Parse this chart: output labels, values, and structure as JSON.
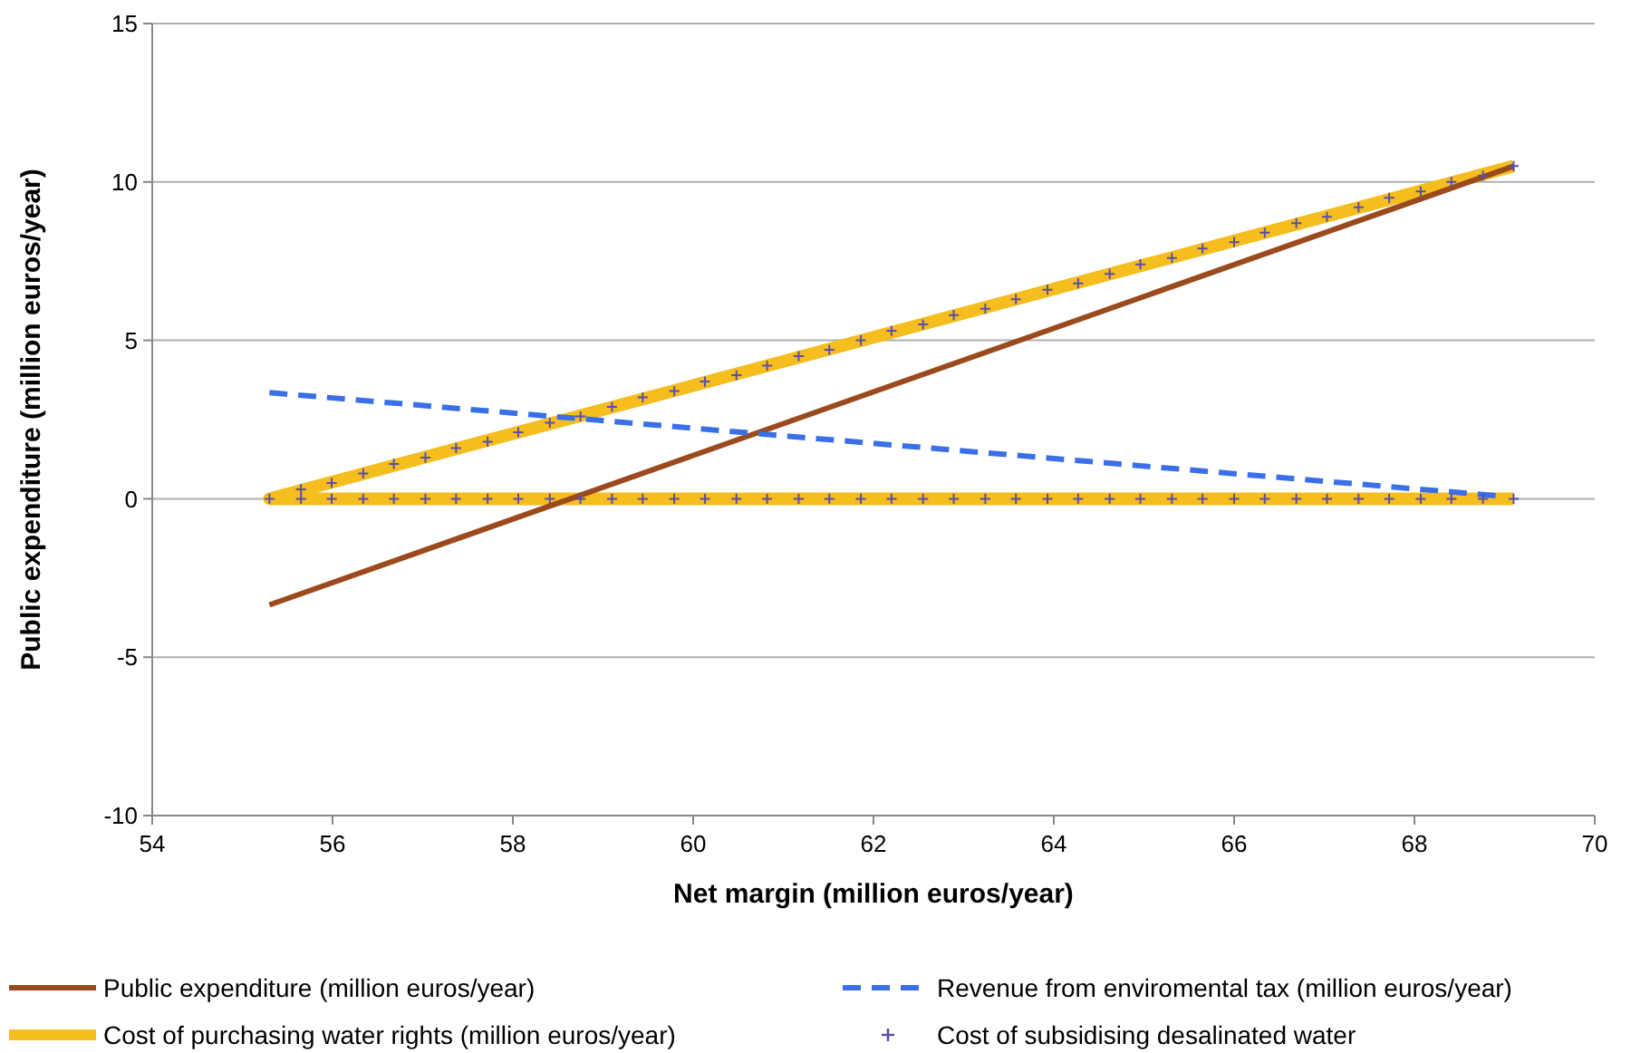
{
  "chart_data": {
    "type": "line",
    "xlabel": "Net margin (million euros/year)",
    "ylabel": "Public expenditure (million euros/year)",
    "xlim": [
      54,
      70
    ],
    "xticks": [
      54,
      56,
      58,
      60,
      62,
      64,
      66,
      68,
      70
    ],
    "ylim": [
      -10,
      15
    ],
    "yticks": [
      -10,
      -5,
      0,
      5,
      10,
      15
    ],
    "grid": "y",
    "legend": "bottom",
    "series": [
      {
        "name": "Public expenditure (million euros/year)",
        "color": "#9a4a1c",
        "x": [
          55.3,
          69.1
        ],
        "values": [
          -3.35,
          10.5
        ],
        "line_style": "solid"
      },
      {
        "name": "Revenue from enviromental tax (million euros/year)",
        "color": "#3a6fe8",
        "x": [
          55.3,
          68.9
        ],
        "values": [
          3.35,
          0.1
        ],
        "line_style": "dashed"
      },
      {
        "name": "Cost of purchasing water rights (million euros/year)",
        "color": "#f5be1e",
        "x": [
          69.1,
          55.3,
          69.1
        ],
        "values": [
          0,
          0,
          10.5
        ],
        "line_style": "solid"
      },
      {
        "name": "Cost of subsidising desalinated water",
        "type": "scatter",
        "marker": "cross",
        "color": "#5b4fa6",
        "x": [
          55.3,
          55.65,
          55.99,
          56.34,
          56.68,
          57.03,
          57.37,
          57.72,
          58.06,
          58.41,
          58.75,
          59.1,
          59.44,
          59.79,
          60.13,
          60.48,
          60.82,
          61.17,
          61.51,
          61.86,
          62.2,
          62.55,
          62.89,
          63.24,
          63.58,
          63.93,
          64.27,
          64.62,
          64.96,
          65.31,
          65.65,
          66.0,
          66.34,
          66.69,
          67.03,
          67.38,
          67.72,
          68.07,
          68.41,
          68.76,
          69.1,
          55.65,
          55.99,
          56.34,
          56.68,
          57.03,
          57.37,
          57.72,
          58.06,
          58.41,
          58.75,
          59.1,
          59.44,
          59.79,
          60.13,
          60.48,
          60.82,
          61.17,
          61.51,
          61.86,
          62.2,
          62.55,
          62.89,
          63.24,
          63.58,
          63.93,
          64.27,
          64.62,
          64.96,
          65.31,
          65.65,
          66.0,
          66.34,
          66.69,
          67.03,
          67.38,
          67.72,
          68.07,
          68.41,
          68.76,
          69.1
        ],
        "values": [
          0,
          0.3,
          0.5,
          0.8,
          1.1,
          1.3,
          1.6,
          1.8,
          2.1,
          2.4,
          2.6,
          2.9,
          3.2,
          3.4,
          3.7,
          3.9,
          4.2,
          4.5,
          4.7,
          5.0,
          5.3,
          5.5,
          5.8,
          6.0,
          6.3,
          6.6,
          6.8,
          7.1,
          7.4,
          7.6,
          7.9,
          8.1,
          8.4,
          8.7,
          8.9,
          9.2,
          9.5,
          9.7,
          10.0,
          10.2,
          10.5,
          0,
          0,
          0,
          0,
          0,
          0,
          0,
          0,
          0,
          0,
          0,
          0,
          0,
          0,
          0,
          0,
          0,
          0,
          0,
          0,
          0,
          0,
          0,
          0,
          0,
          0,
          0,
          0,
          0,
          0,
          0,
          0,
          0,
          0,
          0,
          0,
          0,
          0,
          0,
          0
        ]
      }
    ]
  }
}
